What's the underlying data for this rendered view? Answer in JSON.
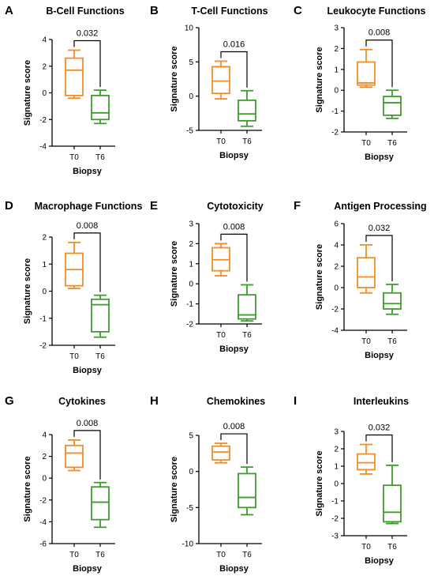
{
  "colors": {
    "T0": "#F28C28",
    "T6": "#3E9B2E",
    "axis": "#000000"
  },
  "chart_data": [
    {
      "letter": "A",
      "type": "boxplot",
      "title": "B-Cell Functions",
      "xlabel": "Biopsy",
      "ylabel": "Signature score",
      "ylim": [
        -4,
        4
      ],
      "yticks": [
        "-4",
        "-2",
        "0",
        "2",
        "4"
      ],
      "categories": [
        "T0",
        "T6"
      ],
      "pvalue": "0.032",
      "boxes": [
        {
          "group": "T0",
          "min": -0.4,
          "q1": -0.2,
          "median": 1.7,
          "q3": 2.6,
          "max": 3.2
        },
        {
          "group": "T6",
          "min": -2.3,
          "q1": -2.0,
          "median": -1.5,
          "q3": -0.2,
          "max": 0.2
        }
      ]
    },
    {
      "letter": "B",
      "type": "boxplot",
      "title": "T-Cell Functions",
      "xlabel": "Biopsy",
      "ylabel": "Signature score",
      "ylim": [
        -5,
        10
      ],
      "yticks": [
        "-5",
        "0",
        "5",
        "10"
      ],
      "categories": [
        "T0",
        "T6"
      ],
      "pvalue": "0.016",
      "boxes": [
        {
          "group": "T0",
          "min": -0.4,
          "q1": 0.4,
          "median": 2.2,
          "q3": 4.3,
          "max": 5.1
        },
        {
          "group": "T6",
          "min": -4.4,
          "q1": -3.6,
          "median": -2.6,
          "q3": -0.6,
          "max": 0.8
        }
      ]
    },
    {
      "letter": "C",
      "type": "boxplot",
      "title": "Leukocyte Functions",
      "xlabel": "Biopsy",
      "ylabel": "Signature score",
      "ylim": [
        -2,
        3
      ],
      "yticks": [
        "-2",
        "-1",
        "0",
        "1",
        "2",
        "3"
      ],
      "categories": [
        "T0",
        "T6"
      ],
      "pvalue": "0.008",
      "boxes": [
        {
          "group": "T0",
          "min": 0.15,
          "q1": 0.25,
          "median": 0.35,
          "q3": 1.35,
          "max": 1.95
        },
        {
          "group": "T6",
          "min": -1.35,
          "q1": -1.2,
          "median": -0.6,
          "q3": -0.3,
          "max": 0.0
        }
      ]
    },
    {
      "letter": "D",
      "type": "boxplot",
      "title": "Macrophage Functions",
      "xlabel": "Biopsy",
      "ylabel": "Signature score",
      "ylim": [
        -2,
        2
      ],
      "yticks": [
        "-2",
        "-1",
        "0",
        "1",
        "2"
      ],
      "categories": [
        "T0",
        "T6"
      ],
      "pvalue": "0.008",
      "boxes": [
        {
          "group": "T0",
          "min": 0.1,
          "q1": 0.2,
          "median": 0.8,
          "q3": 1.4,
          "max": 1.8
        },
        {
          "group": "T6",
          "min": -1.7,
          "q1": -1.5,
          "median": -0.5,
          "q3": -0.3,
          "max": -0.15
        }
      ]
    },
    {
      "letter": "E",
      "type": "boxplot",
      "title": "Cytotoxicity",
      "xlabel": "Biopsy",
      "ylabel": "Signature score",
      "ylim": [
        -2,
        3
      ],
      "yticks": [
        "-2",
        "-1",
        "0",
        "1",
        "2",
        "3"
      ],
      "categories": [
        "T0",
        "T6"
      ],
      "pvalue": "0.008",
      "boxes": [
        {
          "group": "T0",
          "min": 0.4,
          "q1": 0.65,
          "median": 1.2,
          "q3": 1.8,
          "max": 2.0
        },
        {
          "group": "T6",
          "min": -1.85,
          "q1": -1.75,
          "median": -1.55,
          "q3": -0.55,
          "max": -0.05
        }
      ]
    },
    {
      "letter": "F",
      "type": "boxplot",
      "title": "Antigen Processing",
      "xlabel": "Biopsy",
      "ylabel": "Signature score",
      "ylim": [
        -4,
        6
      ],
      "yticks": [
        "-4",
        "-2",
        "0",
        "2",
        "4",
        "6"
      ],
      "categories": [
        "T0",
        "T6"
      ],
      "pvalue": "0.032",
      "boxes": [
        {
          "group": "T0",
          "min": -0.5,
          "q1": 0.0,
          "median": 1.0,
          "q3": 2.8,
          "max": 4.0
        },
        {
          "group": "T6",
          "min": -2.5,
          "q1": -2.0,
          "median": -1.5,
          "q3": -0.5,
          "max": 0.3
        }
      ]
    },
    {
      "letter": "G",
      "type": "boxplot",
      "title": "Cytokines",
      "xlabel": "Biopsy",
      "ylabel": "Signature score",
      "ylim": [
        -6,
        4
      ],
      "yticks": [
        "-6",
        "-4",
        "-2",
        "0",
        "2",
        "4"
      ],
      "categories": [
        "T0",
        "T6"
      ],
      "pvalue": "0.008",
      "boxes": [
        {
          "group": "T0",
          "min": 0.7,
          "q1": 1.0,
          "median": 2.3,
          "q3": 3.0,
          "max": 3.5
        },
        {
          "group": "T6",
          "min": -4.5,
          "q1": -3.8,
          "median": -2.2,
          "q3": -0.8,
          "max": -0.4
        }
      ]
    },
    {
      "letter": "H",
      "type": "boxplot",
      "title": "Chemokines",
      "xlabel": "Biopsy",
      "ylabel": "Signature score",
      "ylim": [
        -10,
        5
      ],
      "yticks": [
        "-10",
        "-5",
        "0",
        "5"
      ],
      "categories": [
        "T0",
        "T6"
      ],
      "pvalue": "0.008",
      "boxes": [
        {
          "group": "T0",
          "min": 1.2,
          "q1": 1.6,
          "median": 2.7,
          "q3": 3.5,
          "max": 3.9
        },
        {
          "group": "T6",
          "min": -6.0,
          "q1": -5.0,
          "median": -3.6,
          "q3": -0.3,
          "max": 0.6
        }
      ]
    },
    {
      "letter": "I",
      "type": "boxplot",
      "title": "Interleukins",
      "xlabel": "Biopsy",
      "ylabel": "Signature score",
      "ylim": [
        -3,
        3
      ],
      "yticks": [
        "-3",
        "-2",
        "-1",
        "0",
        "1",
        "2",
        "3"
      ],
      "categories": [
        "T0",
        "T6"
      ],
      "pvalue": "0.032",
      "boxes": [
        {
          "group": "T0",
          "min": 0.55,
          "q1": 0.8,
          "median": 1.2,
          "q3": 1.7,
          "max": 2.25
        },
        {
          "group": "T6",
          "min": -2.3,
          "q1": -2.2,
          "median": -1.65,
          "q3": -0.1,
          "max": 1.05
        }
      ]
    }
  ]
}
